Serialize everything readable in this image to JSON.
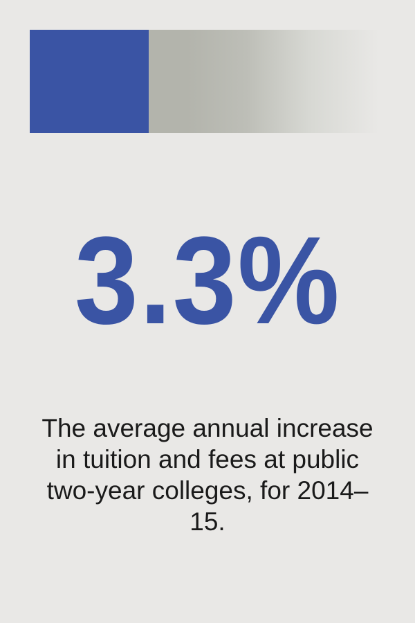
{
  "progress_bar": {
    "value": 0.34,
    "fill_color": "#3a54a4",
    "track_color": "#b3b4ac"
  },
  "stat": {
    "value": "3.3%",
    "color": "#3a54a4"
  },
  "description": {
    "text": "The average annual increase in tuition and fees at public two-year colleges, for 2014–15."
  },
  "colors": {
    "background": "#e9e8e6",
    "accent": "#3a54a4",
    "text": "#1a1a1a"
  }
}
